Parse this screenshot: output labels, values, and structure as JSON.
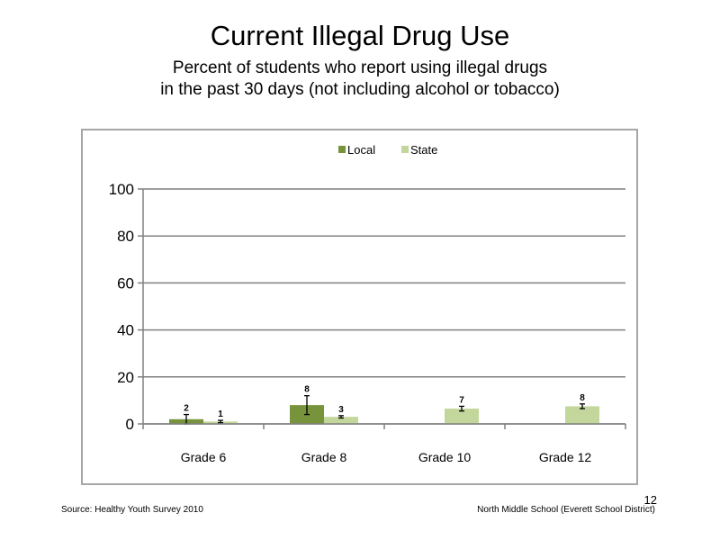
{
  "title": "Current Illegal Drug Use",
  "subtitle_line1": "Percent of students who report using illegal drugs",
  "subtitle_line2": "in the past 30 days (not including  alcohol or tobacco)",
  "footer": {
    "source": "Source: Healthy Youth Survey 2010",
    "school": "North Middle  School (Everett School District)",
    "page_number": "12"
  },
  "colors": {
    "local": "#77933c",
    "state": "#c3d69b",
    "gridline": "#808080"
  },
  "chart_data": {
    "type": "bar",
    "categories": [
      "Grade 6",
      "Grade 8",
      "Grade 10",
      "Grade 12"
    ],
    "series": [
      {
        "name": "Local",
        "values": [
          2,
          8,
          null,
          null
        ],
        "labels": [
          "2",
          "8",
          "",
          ""
        ],
        "error": [
          [
            0,
            4
          ],
          [
            4,
            12
          ],
          null,
          null
        ]
      },
      {
        "name": "State",
        "values": [
          1,
          3,
          6.5,
          7.5
        ],
        "labels": [
          "1",
          "3",
          "7",
          "8"
        ],
        "error": [
          [
            0.5,
            1.5
          ],
          [
            2.5,
            3.5
          ],
          [
            5.5,
            7.5
          ],
          [
            6.5,
            8.5
          ]
        ]
      }
    ],
    "ylim": [
      0,
      100
    ],
    "yticks": [
      "0",
      "20",
      "40",
      "60",
      "80",
      "100"
    ],
    "legend_position": "top",
    "grid": true
  }
}
